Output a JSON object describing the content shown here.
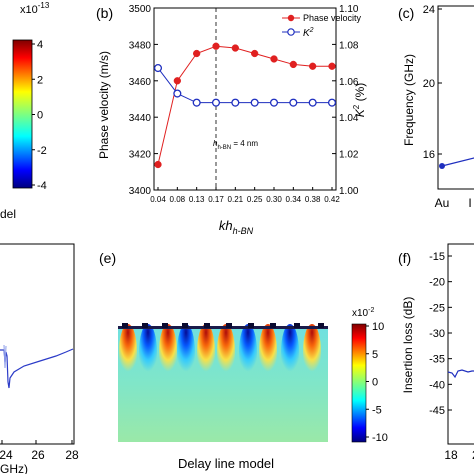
{
  "colors": {
    "red": "#e02020",
    "blue": "#1f2fbf",
    "axis": "#000000"
  },
  "colorbar_a": {
    "exponent": "x10",
    "exponent_power": "-13",
    "ticks": [
      "4",
      "2",
      "0",
      "-2",
      "-4"
    ]
  },
  "panel_a": {
    "caption_fragment": "del"
  },
  "panel_b": {
    "label": "(b)",
    "annotation_h": "h",
    "annotation_sub": "h-BN",
    "annotation_rest": " = 4 nm"
  },
  "panel_c": {
    "label": "(c)",
    "ylabel": "Frequency (GHz)",
    "yticks": [
      "24",
      "20",
      "16"
    ],
    "xticks": [
      "Au",
      "I"
    ]
  },
  "panel_d": {
    "xticks": [
      "24",
      "26",
      "28"
    ],
    "xlabel_fragment": "GHz)"
  },
  "panel_e": {
    "label": "(e)",
    "caption": "Delay line model",
    "colorbar_exponent": "x10",
    "colorbar_power": "-2",
    "colorbar_ticks": [
      "10",
      "5",
      "0",
      "-5",
      "-10"
    ]
  },
  "panel_f": {
    "label": "(f)",
    "ylabel": "Insertion loss (dB)",
    "yticks": [
      "-15",
      "-20",
      "-25",
      "-30",
      "-35",
      "-40",
      "-45"
    ],
    "xticks": [
      "18",
      "2"
    ]
  },
  "chart_data": [
    {
      "type": "line",
      "panel": "b",
      "xlabel": "kh",
      "xlabel_sub": "h-BN",
      "ylabel": "Phase velocity (m/s)",
      "y2label": "K",
      "y2label_sup": "2",
      "y2label_unit": " (%)",
      "categories": [
        "0.04",
        "0.08",
        "0.13",
        "0.17",
        "0.21",
        "0.25",
        "0.30",
        "0.34",
        "0.38",
        "0.42"
      ],
      "ylim": [
        3400,
        3500
      ],
      "yticks": [
        "3500",
        "3480",
        "3460",
        "3440",
        "3420",
        "3400"
      ],
      "y2lim": [
        1.0,
        1.1
      ],
      "y2ticks": [
        "1.10",
        "1.08",
        "1.06",
        "1.04",
        "1.02",
        "1.00"
      ],
      "vline_at": "0.17",
      "legend": "top-right",
      "series": [
        {
          "name": "Phase velocity",
          "axis": "left",
          "marker": "filled-circle",
          "color": "#e02020",
          "values": [
            3414,
            3460,
            3475,
            3479,
            3478,
            3475,
            3472,
            3469,
            3468,
            3468
          ]
        },
        {
          "name": "K",
          "name_sup": "2",
          "axis": "right",
          "marker": "open-circle",
          "color": "#1f2fbf",
          "values": [
            1.067,
            1.053,
            1.048,
            1.048,
            1.048,
            1.048,
            1.048,
            1.048,
            1.048,
            1.048
          ]
        }
      ]
    }
  ]
}
